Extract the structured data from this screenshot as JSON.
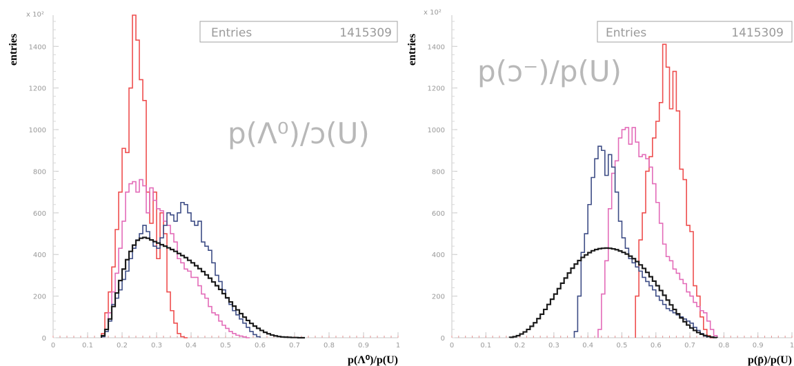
{
  "chart_data": [
    {
      "type": "line",
      "style": "step-histogram",
      "title": "",
      "xlabel": "p(Λ⁰)/p(U)",
      "ylabel": "entries",
      "y_multiplier": "x 10²",
      "annotation": "p(Λ⁰)/ɔ(U)",
      "stats_box": {
        "label": "Entries",
        "value": "1415309"
      },
      "xlim": [
        0,
        1
      ],
      "ylim": [
        0,
        1550
      ],
      "x_ticks": [
        "0",
        "0.1",
        "0.2",
        "0.3",
        "0.4",
        "0.5",
        "0.6",
        "0.7",
        "0.8",
        "0.9",
        "1"
      ],
      "y_ticks": [
        "0",
        "200",
        "400",
        "600",
        "800",
        "1000",
        "1200",
        "1400"
      ],
      "grid": false,
      "series": [
        {
          "color": "#1a1a1a",
          "x": [
            0.145,
            0.155,
            0.165,
            0.175,
            0.185,
            0.195,
            0.205,
            0.215,
            0.225,
            0.235,
            0.245,
            0.255,
            0.265,
            0.275,
            0.285,
            0.295,
            0.305,
            0.315,
            0.325,
            0.335,
            0.345,
            0.355,
            0.365,
            0.375,
            0.385,
            0.395,
            0.405,
            0.415,
            0.425,
            0.435,
            0.445,
            0.455,
            0.465,
            0.475,
            0.485,
            0.495,
            0.505,
            0.515,
            0.525,
            0.535,
            0.545,
            0.555,
            0.565,
            0.575,
            0.585,
            0.595,
            0.605,
            0.615,
            0.625,
            0.635,
            0.645,
            0.655,
            0.665,
            0.675,
            0.685,
            0.695,
            0.705,
            0.715,
            0.725
          ],
          "values": [
            10,
            40,
            90,
            150,
            215,
            275,
            330,
            375,
            415,
            445,
            468,
            478,
            482,
            478,
            470,
            462,
            455,
            447,
            440,
            432,
            424,
            415,
            405,
            395,
            385,
            372,
            360,
            346,
            332,
            318,
            302,
            286,
            268,
            250,
            232,
            212,
            192,
            172,
            152,
            134,
            116,
            99,
            83,
            69,
            56,
            45,
            35,
            26,
            19,
            13,
            9,
            6,
            4,
            3,
            2,
            1,
            1,
            0,
            0
          ]
        },
        {
          "color": "#3d4c85",
          "x": [
            0.145,
            0.155,
            0.165,
            0.175,
            0.185,
            0.195,
            0.205,
            0.215,
            0.225,
            0.235,
            0.245,
            0.255,
            0.265,
            0.275,
            0.285,
            0.295,
            0.305,
            0.315,
            0.325,
            0.335,
            0.345,
            0.355,
            0.365,
            0.375,
            0.385,
            0.395,
            0.405,
            0.415,
            0.425,
            0.435,
            0.445,
            0.455,
            0.465,
            0.475,
            0.485,
            0.495,
            0.505,
            0.515,
            0.525,
            0.535,
            0.545,
            0.555,
            0.565,
            0.575,
            0.585,
            0.595
          ],
          "values": [
            5,
            30,
            80,
            160,
            190,
            230,
            280,
            320,
            380,
            430,
            470,
            500,
            540,
            510,
            470,
            440,
            430,
            480,
            540,
            600,
            590,
            560,
            600,
            650,
            640,
            600,
            560,
            540,
            560,
            460,
            440,
            420,
            360,
            300,
            270,
            230,
            190,
            160,
            130,
            110,
            90,
            70,
            50,
            30,
            15,
            5
          ]
        },
        {
          "color": "#e36bb8",
          "x": [
            0.145,
            0.155,
            0.165,
            0.175,
            0.185,
            0.195,
            0.205,
            0.215,
            0.225,
            0.235,
            0.245,
            0.255,
            0.265,
            0.275,
            0.285,
            0.295,
            0.305,
            0.315,
            0.325,
            0.335,
            0.345,
            0.355,
            0.365,
            0.375,
            0.385,
            0.395,
            0.405,
            0.415,
            0.425,
            0.435,
            0.445,
            0.455,
            0.465,
            0.475,
            0.485,
            0.495,
            0.505,
            0.515,
            0.525,
            0.535,
            0.545,
            0.555,
            0.565
          ],
          "values": [
            5,
            40,
            120,
            220,
            310,
            430,
            560,
            700,
            740,
            750,
            700,
            760,
            730,
            600,
            720,
            660,
            620,
            610,
            560,
            540,
            500,
            460,
            380,
            360,
            330,
            320,
            290,
            290,
            250,
            210,
            190,
            150,
            120,
            110,
            80,
            60,
            45,
            30,
            20,
            12,
            8,
            4,
            0
          ]
        },
        {
          "color": "#ee4d4d",
          "x": [
            0.145,
            0.155,
            0.165,
            0.175,
            0.185,
            0.195,
            0.205,
            0.215,
            0.225,
            0.235,
            0.245,
            0.255,
            0.265,
            0.275,
            0.285,
            0.295,
            0.305,
            0.315,
            0.325,
            0.335,
            0.345,
            0.355,
            0.365,
            0.375,
            0.385
          ],
          "values": [
            20,
            120,
            220,
            340,
            520,
            700,
            910,
            890,
            1200,
            1550,
            1430,
            1240,
            1140,
            700,
            550,
            700,
            380,
            600,
            500,
            220,
            130,
            70,
            20,
            5,
            0
          ]
        }
      ]
    },
    {
      "type": "line",
      "style": "step-histogram",
      "title": "",
      "xlabel": "p(p̄)/p(U)",
      "ylabel": "entries",
      "y_multiplier": "x 10²",
      "annotation": "p(ɔ⁻)/p(U)",
      "stats_box": {
        "label": "Entries",
        "value": "1415309"
      },
      "xlim": [
        0,
        1
      ],
      "ylim": [
        0,
        1550
      ],
      "x_ticks": [
        "0",
        "0.1",
        "0.2",
        "0.3",
        "0.4",
        "0.5",
        "0.6",
        "0.7",
        "0.8",
        "0.9",
        "1"
      ],
      "y_ticks": [
        "0",
        "200",
        "400",
        "600",
        "800",
        "1000",
        "1200",
        "1400"
      ],
      "grid": false,
      "series": [
        {
          "color": "#1a1a1a",
          "x": [
            0.175,
            0.185,
            0.195,
            0.205,
            0.215,
            0.225,
            0.235,
            0.245,
            0.255,
            0.265,
            0.275,
            0.285,
            0.295,
            0.305,
            0.315,
            0.325,
            0.335,
            0.345,
            0.355,
            0.365,
            0.375,
            0.385,
            0.395,
            0.405,
            0.415,
            0.425,
            0.435,
            0.445,
            0.455,
            0.465,
            0.475,
            0.485,
            0.495,
            0.505,
            0.515,
            0.525,
            0.535,
            0.545,
            0.555,
            0.565,
            0.575,
            0.585,
            0.595,
            0.605,
            0.615,
            0.625,
            0.635,
            0.645,
            0.655,
            0.665,
            0.675,
            0.685,
            0.695,
            0.705,
            0.715,
            0.725,
            0.735,
            0.745,
            0.755,
            0.765,
            0.775
          ],
          "values": [
            2,
            5,
            10,
            18,
            28,
            40,
            55,
            72,
            92,
            113,
            136,
            160,
            185,
            210,
            236,
            262,
            287,
            311,
            334,
            354,
            371,
            386,
            398,
            409,
            418,
            424,
            428,
            430,
            431,
            430,
            427,
            423,
            417,
            410,
            402,
            392,
            380,
            366,
            350,
            333,
            314,
            293,
            272,
            250,
            227,
            204,
            181,
            158,
            136,
            115,
            95,
            77,
            61,
            47,
            35,
            25,
            17,
            11,
            6,
            3,
            1
          ]
        },
        {
          "color": "#3d4c85",
          "x": [
            0.365,
            0.375,
            0.385,
            0.395,
            0.405,
            0.415,
            0.425,
            0.435,
            0.445,
            0.455,
            0.465,
            0.475,
            0.485,
            0.495,
            0.505,
            0.515,
            0.525,
            0.535,
            0.545,
            0.555,
            0.565,
            0.575,
            0.585,
            0.595,
            0.605,
            0.615,
            0.625,
            0.635,
            0.645,
            0.655,
            0.665,
            0.675,
            0.685,
            0.695,
            0.705,
            0.715,
            0.725,
            0.735,
            0.745
          ],
          "values": [
            30,
            200,
            410,
            500,
            640,
            770,
            860,
            920,
            900,
            780,
            880,
            820,
            700,
            560,
            480,
            430,
            380,
            360,
            340,
            320,
            290,
            270,
            250,
            230,
            200,
            180,
            160,
            140,
            130,
            120,
            110,
            100,
            90,
            80,
            70,
            50,
            35,
            20,
            8
          ]
        },
        {
          "color": "#e36bb8",
          "x": [
            0.435,
            0.445,
            0.455,
            0.465,
            0.475,
            0.485,
            0.495,
            0.505,
            0.515,
            0.525,
            0.535,
            0.545,
            0.555,
            0.565,
            0.575,
            0.585,
            0.595,
            0.605,
            0.615,
            0.625,
            0.635,
            0.645,
            0.655,
            0.665,
            0.675,
            0.685,
            0.695,
            0.705,
            0.715,
            0.725,
            0.735,
            0.745,
            0.755,
            0.765,
            0.775
          ],
          "values": [
            40,
            210,
            370,
            620,
            790,
            850,
            960,
            1000,
            1010,
            930,
            1010,
            940,
            870,
            880,
            860,
            820,
            740,
            650,
            550,
            450,
            390,
            370,
            330,
            310,
            280,
            260,
            220,
            200,
            170,
            150,
            130,
            120,
            80,
            40,
            10
          ]
        },
        {
          "color": "#ee4d4d",
          "x": [
            0.545,
            0.555,
            0.565,
            0.575,
            0.585,
            0.595,
            0.605,
            0.615,
            0.625,
            0.635,
            0.645,
            0.655,
            0.665,
            0.675,
            0.685,
            0.695,
            0.705,
            0.715,
            0.725,
            0.735,
            0.745,
            0.755,
            0.765
          ],
          "values": [
            200,
            470,
            600,
            800,
            870,
            960,
            1040,
            1130,
            1410,
            1300,
            1100,
            1280,
            1090,
            810,
            760,
            540,
            510,
            250,
            200,
            100,
            40,
            10,
            0
          ]
        }
      ]
    }
  ]
}
